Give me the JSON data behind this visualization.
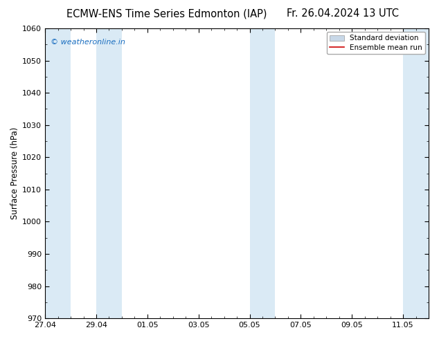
{
  "title_left": "ECMW-ENS Time Series Edmonton (IAP)",
  "title_right": "Fr. 26.04.2024 13 UTC",
  "ylabel": "Surface Pressure (hPa)",
  "ylim": [
    970,
    1060
  ],
  "yticks": [
    970,
    980,
    990,
    1000,
    1010,
    1020,
    1030,
    1040,
    1050,
    1060
  ],
  "xlim_days": [
    0,
    15
  ],
  "xtick_labels": [
    "27.04",
    "29.04",
    "01.05",
    "03.05",
    "05.05",
    "07.05",
    "09.05",
    "11.05"
  ],
  "xtick_positions_days": [
    0,
    2,
    4,
    6,
    8,
    10,
    12,
    14
  ],
  "shaded_bands": [
    {
      "x_start_day": 0.0,
      "x_end_day": 1.0
    },
    {
      "x_start_day": 2.0,
      "x_end_day": 3.0
    },
    {
      "x_start_day": 8.0,
      "x_end_day": 9.0
    },
    {
      "x_start_day": 14.0,
      "x_end_day": 15.0
    }
  ],
  "band_color": "#daeaf5",
  "ensemble_mean_color": "#cc0000",
  "watermark_text": "© weatheronline.in",
  "watermark_color": "#1a6ec0",
  "background_color": "#ffffff",
  "plot_bg_color": "#ffffff",
  "legend_std_facecolor": "#c8d8e8",
  "legend_std_edgecolor": "#999999",
  "legend_mean_color": "#cc0000",
  "title_fontsize": 10.5,
  "tick_fontsize": 8,
  "ylabel_fontsize": 8.5,
  "watermark_fontsize": 8,
  "legend_fontsize": 7.5
}
